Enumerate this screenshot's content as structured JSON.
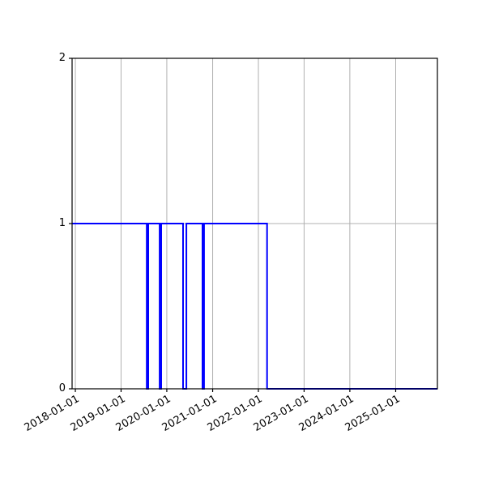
{
  "figure": {
    "background": "#ffffff"
  },
  "chart_data": {
    "type": "line",
    "subtype": "step-post",
    "title": "",
    "xlabel": "",
    "ylabel": "",
    "grid": true,
    "legend": false,
    "x_tick_labels": [
      "2018-01-01",
      "2019-01-01",
      "2020-01-01",
      "2021-01-01",
      "2022-01-01",
      "2023-01-01",
      "2024-01-01",
      "2025-01-01"
    ],
    "y_tick_labels": [
      "0",
      "1",
      "2"
    ],
    "y_tick_values": [
      0,
      1,
      2
    ],
    "ylim": [
      0,
      2
    ],
    "xlim": [
      "2017-12-06",
      "2025-11-30"
    ],
    "x_tick_rotation_deg": 30,
    "line_width": 2,
    "colors": {
      "line": "#0000ff",
      "grid": "#b0b0b0",
      "axis": "#000000",
      "text": "#000000"
    },
    "series": [
      {
        "name": "",
        "color": "#0000ff",
        "step": "post",
        "points": [
          {
            "x": "2017-12-06",
            "y": 1
          },
          {
            "x": "2019-07-25",
            "y": 0
          },
          {
            "x": "2019-08-06",
            "y": 1
          },
          {
            "x": "2019-11-05",
            "y": 0
          },
          {
            "x": "2019-11-17",
            "y": 1
          },
          {
            "x": "2020-05-10",
            "y": 0
          },
          {
            "x": "2020-06-05",
            "y": 1
          },
          {
            "x": "2020-10-12",
            "y": 0
          },
          {
            "x": "2020-10-24",
            "y": 1
          },
          {
            "x": "2022-03-11",
            "y": 0
          },
          {
            "x": "2025-11-30",
            "y": 0
          }
        ]
      }
    ]
  }
}
